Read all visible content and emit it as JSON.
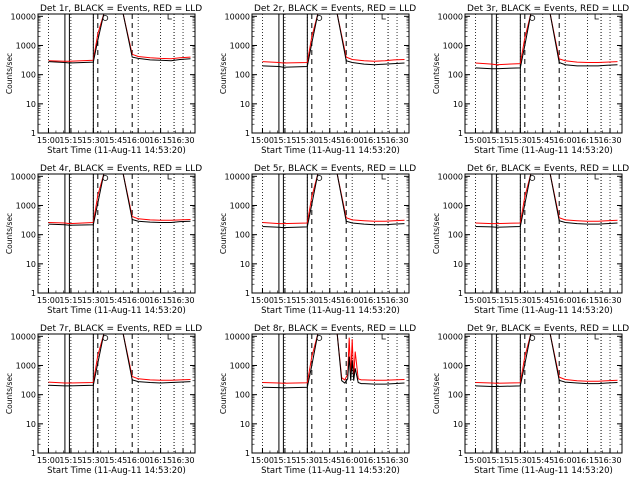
{
  "chart_data": [
    {
      "type": "line",
      "title": "Det 1r, BLACK = Events, RED = LLD",
      "xlabel": "Start Time (11-Aug-11 14:53:20)",
      "ylabel": "Counts/sec",
      "yscale": "log",
      "ylim": [
        1,
        12000
      ],
      "xlim": [
        -7,
        98
      ],
      "x_ticks": [
        "15:00",
        "15:15",
        "15:30",
        "15:45",
        "16:00",
        "16:15",
        "16:30"
      ],
      "y_ticks": [
        "1",
        "10",
        "100",
        "1000",
        "10000"
      ],
      "grid": "vertical dotted",
      "series": [
        {
          "name": "Events",
          "color": "#000000",
          "x": [
            0,
            11,
            14,
            30,
            33,
            37,
            40,
            50,
            56,
            60,
            68,
            75,
            82,
            88,
            95
          ],
          "y": [
            280,
            260,
            250,
            270,
            1500,
            12000,
            12000,
            12000,
            400,
            360,
            320,
            310,
            300,
            330,
            350
          ]
        },
        {
          "name": "LLD",
          "color": "#ff0000",
          "x": [
            0,
            11,
            14,
            30,
            33,
            37,
            40,
            50,
            56,
            60,
            68,
            75,
            82,
            88,
            95
          ],
          "y": [
            300,
            290,
            290,
            310,
            2500,
            12000,
            12000,
            12000,
            500,
            420,
            380,
            360,
            350,
            380,
            400
          ]
        }
      ]
    },
    {
      "type": "line",
      "title": "Det 2r, BLACK = Events, RED = LLD",
      "xlabel": "Start Time (11-Aug-11 14:53:20)",
      "ylabel": "Counts/sec",
      "yscale": "log",
      "ylim": [
        1,
        12000
      ],
      "xlim": [
        -7,
        98
      ],
      "x_ticks": [
        "15:00",
        "15:15",
        "15:30",
        "15:45",
        "16:00",
        "16:15",
        "16:30"
      ],
      "y_ticks": [
        "1",
        "10",
        "100",
        "1000",
        "10000"
      ],
      "grid": "vertical dotted",
      "series": [
        {
          "name": "Events",
          "color": "#000000",
          "x": [
            0,
            11,
            14,
            30,
            33,
            37,
            40,
            50,
            56,
            60,
            68,
            75,
            82,
            88,
            95
          ],
          "y": [
            200,
            190,
            180,
            190,
            1200,
            12000,
            12000,
            12000,
            300,
            260,
            230,
            220,
            230,
            240,
            250
          ]
        },
        {
          "name": "LLD",
          "color": "#ff0000",
          "x": [
            0,
            11,
            14,
            30,
            33,
            37,
            40,
            50,
            56,
            60,
            68,
            75,
            82,
            88,
            95
          ],
          "y": [
            280,
            260,
            250,
            260,
            2000,
            12000,
            12000,
            12000,
            400,
            330,
            300,
            290,
            300,
            320,
            330
          ]
        }
      ]
    },
    {
      "type": "line",
      "title": "Det 3r, BLACK = Events, RED = LLD",
      "xlabel": "Start Time (11-Aug-11 14:53:20)",
      "ylabel": "Counts/sec",
      "yscale": "log",
      "ylim": [
        1,
        12000
      ],
      "xlim": [
        -7,
        98
      ],
      "x_ticks": [
        "15:00",
        "15:15",
        "15:30",
        "15:45",
        "16:00",
        "16:15",
        "16:30"
      ],
      "y_ticks": [
        "1",
        "10",
        "100",
        "1000",
        "10000"
      ],
      "grid": "vertical dotted",
      "series": [
        {
          "name": "Events",
          "color": "#000000",
          "x": [
            0,
            11,
            14,
            30,
            33,
            37,
            40,
            50,
            56,
            60,
            68,
            75,
            82,
            88,
            95
          ],
          "y": [
            170,
            160,
            160,
            170,
            1000,
            12000,
            12000,
            12000,
            260,
            220,
            200,
            200,
            200,
            210,
            220
          ]
        },
        {
          "name": "LLD",
          "color": "#ff0000",
          "x": [
            0,
            11,
            14,
            30,
            33,
            37,
            40,
            50,
            56,
            60,
            68,
            75,
            82,
            88,
            95
          ],
          "y": [
            250,
            230,
            220,
            240,
            1800,
            12000,
            12000,
            12000,
            350,
            300,
            270,
            260,
            260,
            270,
            280
          ]
        }
      ]
    },
    {
      "type": "line",
      "title": "Det 4r, BLACK = Events, RED = LLD",
      "xlabel": "Start Time (11-Aug-11 14:53:20)",
      "ylabel": "Counts/sec",
      "yscale": "log",
      "ylim": [
        1,
        12000
      ],
      "xlim": [
        -7,
        98
      ],
      "x_ticks": [
        "15:00",
        "15:15",
        "15:30",
        "15:45",
        "16:00",
        "16:15",
        "16:30"
      ],
      "y_ticks": [
        "1",
        "10",
        "100",
        "1000",
        "10000"
      ],
      "grid": "vertical dotted",
      "series": [
        {
          "name": "Events",
          "color": "#000000",
          "x": [
            0,
            11,
            14,
            30,
            33,
            37,
            40,
            50,
            56,
            60,
            68,
            75,
            82,
            88,
            95
          ],
          "y": [
            230,
            220,
            210,
            220,
            1200,
            12000,
            12000,
            12000,
            330,
            290,
            270,
            260,
            260,
            280,
            290
          ]
        },
        {
          "name": "LLD",
          "color": "#ff0000",
          "x": [
            0,
            11,
            14,
            30,
            33,
            37,
            40,
            50,
            56,
            60,
            68,
            75,
            82,
            88,
            95
          ],
          "y": [
            260,
            250,
            240,
            260,
            2200,
            12000,
            12000,
            12000,
            420,
            350,
            320,
            310,
            310,
            320,
            330
          ]
        }
      ]
    },
    {
      "type": "line",
      "title": "Det 5r, BLACK = Events, RED = LLD",
      "xlabel": "Start Time (11-Aug-11 14:53:20)",
      "ylabel": "Counts/sec",
      "yscale": "log",
      "ylim": [
        1,
        12000
      ],
      "xlim": [
        -7,
        98
      ],
      "x_ticks": [
        "15:00",
        "15:15",
        "15:30",
        "15:45",
        "16:00",
        "16:15",
        "16:30"
      ],
      "y_ticks": [
        "1",
        "10",
        "100",
        "1000",
        "10000"
      ],
      "grid": "vertical dotted",
      "series": [
        {
          "name": "Events",
          "color": "#000000",
          "x": [
            0,
            11,
            14,
            30,
            33,
            37,
            40,
            50,
            56,
            60,
            68,
            75,
            82,
            88,
            95
          ],
          "y": [
            190,
            180,
            175,
            185,
            1100,
            12000,
            12000,
            12000,
            290,
            250,
            230,
            220,
            220,
            230,
            240
          ]
        },
        {
          "name": "LLD",
          "color": "#ff0000",
          "x": [
            0,
            11,
            14,
            30,
            33,
            37,
            40,
            50,
            56,
            60,
            68,
            75,
            82,
            88,
            95
          ],
          "y": [
            260,
            240,
            240,
            250,
            2000,
            12000,
            12000,
            12000,
            380,
            320,
            300,
            290,
            290,
            300,
            310
          ]
        }
      ]
    },
    {
      "type": "line",
      "title": "Det 6r, BLACK = Events, RED = LLD",
      "xlabel": "Start Time (11-Aug-11 14:53:20)",
      "ylabel": "Counts/sec",
      "yscale": "log",
      "ylim": [
        1,
        12000
      ],
      "xlim": [
        -7,
        98
      ],
      "x_ticks": [
        "15:00",
        "15:15",
        "15:30",
        "15:45",
        "16:00",
        "16:15",
        "16:30"
      ],
      "y_ticks": [
        "1",
        "10",
        "100",
        "1000",
        "10000"
      ],
      "grid": "vertical dotted",
      "series": [
        {
          "name": "Events",
          "color": "#000000",
          "x": [
            0,
            11,
            14,
            30,
            33,
            37,
            40,
            50,
            56,
            60,
            68,
            75,
            82,
            88,
            95
          ],
          "y": [
            190,
            185,
            180,
            190,
            1100,
            12000,
            12000,
            12000,
            300,
            260,
            240,
            230,
            230,
            240,
            250
          ]
        },
        {
          "name": "LLD",
          "color": "#ff0000",
          "x": [
            0,
            11,
            14,
            30,
            33,
            37,
            40,
            50,
            56,
            60,
            68,
            75,
            82,
            88,
            95
          ],
          "y": [
            250,
            240,
            240,
            250,
            2000,
            12000,
            12000,
            12000,
            380,
            320,
            300,
            290,
            290,
            300,
            310
          ]
        }
      ]
    },
    {
      "type": "line",
      "title": "Det 7r, BLACK = Events, RED = LLD",
      "xlabel": "Start Time (11-Aug-11 14:53:20)",
      "ylabel": "Counts/sec",
      "yscale": "log",
      "ylim": [
        1,
        12000
      ],
      "xlim": [
        -7,
        98
      ],
      "x_ticks": [
        "15:00",
        "15:15",
        "15:30",
        "15:45",
        "16:00",
        "16:15",
        "16:30"
      ],
      "y_ticks": [
        "1",
        "10",
        "100",
        "1000",
        "10000"
      ],
      "grid": "vertical dotted",
      "series": [
        {
          "name": "Events",
          "color": "#000000",
          "x": [
            0,
            11,
            14,
            30,
            33,
            37,
            40,
            50,
            56,
            60,
            68,
            75,
            82,
            88,
            95
          ],
          "y": [
            210,
            200,
            200,
            210,
            1200,
            12000,
            12000,
            12000,
            320,
            280,
            260,
            250,
            260,
            270,
            280
          ]
        },
        {
          "name": "LLD",
          "color": "#ff0000",
          "x": [
            0,
            11,
            14,
            30,
            33,
            37,
            40,
            50,
            56,
            60,
            68,
            75,
            82,
            88,
            95
          ],
          "y": [
            270,
            250,
            250,
            260,
            2200,
            12000,
            12000,
            12000,
            420,
            350,
            320,
            310,
            310,
            320,
            330
          ]
        }
      ]
    },
    {
      "type": "line",
      "title": "Det 8r, BLACK = Events, RED = LLD",
      "xlabel": "Start Time (11-Aug-11 14:53:20)",
      "ylabel": "Counts/sec",
      "yscale": "log",
      "ylim": [
        1,
        12000
      ],
      "xlim": [
        -7,
        98
      ],
      "x_ticks": [
        "15:00",
        "15:15",
        "15:30",
        "15:45",
        "16:00",
        "16:15",
        "16:30"
      ],
      "y_ticks": [
        "1",
        "10",
        "100",
        "1000",
        "10000"
      ],
      "grid": "vertical dotted",
      "series": [
        {
          "name": "Events",
          "color": "#000000",
          "x": [
            0,
            11,
            14,
            30,
            33,
            37,
            40,
            50,
            53,
            55,
            57,
            58,
            59,
            60,
            61,
            62,
            64,
            66,
            68,
            75,
            82,
            88,
            95
          ],
          "y": [
            180,
            175,
            170,
            180,
            1000,
            12000,
            12000,
            12000,
            300,
            250,
            350,
            2000,
            300,
            1500,
            300,
            800,
            260,
            240,
            240,
            230,
            230,
            240,
            250
          ]
        },
        {
          "name": "LLD",
          "color": "#ff0000",
          "x": [
            0,
            11,
            14,
            30,
            33,
            37,
            40,
            50,
            53,
            55,
            57,
            58,
            59,
            60,
            61,
            62,
            64,
            66,
            68,
            75,
            82,
            88,
            95
          ],
          "y": [
            260,
            250,
            245,
            255,
            2000,
            12000,
            12000,
            12000,
            380,
            320,
            500,
            9000,
            400,
            8000,
            400,
            3000,
            350,
            320,
            320,
            310,
            310,
            320,
            330
          ]
        }
      ]
    },
    {
      "type": "line",
      "title": "Det 9r, BLACK = Events, RED = LLD",
      "xlabel": "Start Time (11-Aug-11 14:53:20)",
      "ylabel": "Counts/sec",
      "yscale": "log",
      "ylim": [
        1,
        12000
      ],
      "xlim": [
        -7,
        98
      ],
      "x_ticks": [
        "15:00",
        "15:15",
        "15:30",
        "15:45",
        "16:00",
        "16:15",
        "16:30"
      ],
      "y_ticks": [
        "1",
        "10",
        "100",
        "1000",
        "10000"
      ],
      "grid": "vertical dotted",
      "series": [
        {
          "name": "Events",
          "color": "#000000",
          "x": [
            0,
            11,
            14,
            30,
            33,
            37,
            40,
            50,
            56,
            60,
            68,
            75,
            82,
            88,
            95
          ],
          "y": [
            200,
            190,
            190,
            200,
            1100,
            12000,
            12000,
            12000,
            310,
            270,
            250,
            240,
            240,
            250,
            260
          ]
        },
        {
          "name": "LLD",
          "color": "#ff0000",
          "x": [
            0,
            11,
            14,
            30,
            33,
            37,
            40,
            50,
            56,
            60,
            68,
            75,
            82,
            88,
            95
          ],
          "y": [
            260,
            250,
            245,
            255,
            2000,
            12000,
            12000,
            12000,
            400,
            330,
            300,
            290,
            290,
            300,
            310
          ]
        }
      ]
    }
  ]
}
